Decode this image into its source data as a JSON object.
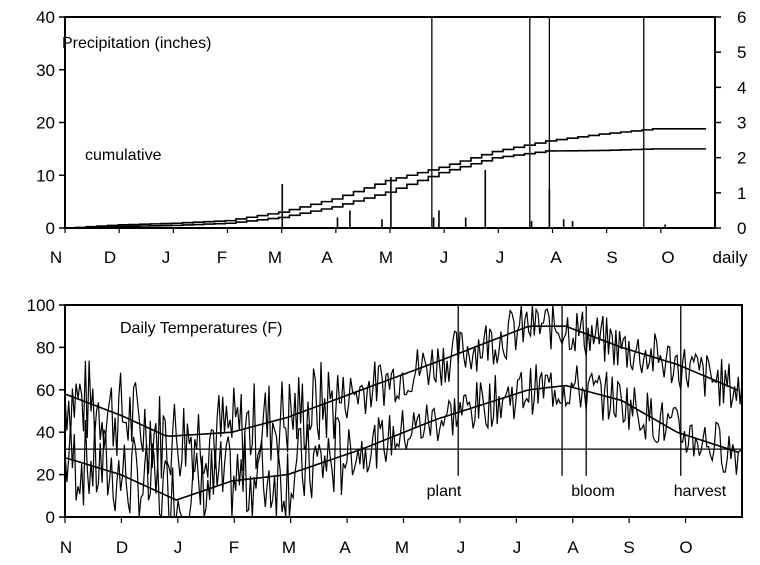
{
  "chart_data": [
    {
      "type": "line",
      "title": "Precipitation (inches)",
      "x_months": [
        "N",
        "D",
        "J",
        "F",
        "M",
        "A",
        "M",
        "J",
        "J",
        "A",
        "S",
        "O",
        "daily"
      ],
      "y_left": {
        "ylim": [
          0,
          40
        ],
        "ticks": [
          "0",
          "10",
          "20",
          "30",
          "40"
        ]
      },
      "y_right": {
        "ylim": [
          0,
          6
        ],
        "ticks": [
          "0",
          "1",
          "2",
          "3",
          "4",
          "5",
          "6"
        ]
      },
      "annotation": "cumulative",
      "series": [
        {
          "values_cumulative_day": [
            0,
            30,
            60,
            90,
            120,
            150,
            180,
            210,
            240,
            270,
            300,
            330,
            360
          ],
          "values_cumulative_in": [
            0,
            0.6,
            0.9,
            1.4,
            3.0,
            5.5,
            9.0,
            11.5,
            14.5,
            16.5,
            17.8,
            18.8,
            18.8
          ]
        },
        {
          "values_cumulative_day": [
            0,
            30,
            60,
            90,
            120,
            150,
            180,
            210,
            240,
            270,
            300,
            330,
            360
          ],
          "values_cumulative_in": [
            0,
            0.3,
            0.5,
            0.9,
            2.0,
            4.0,
            6.8,
            10.5,
            13.3,
            14.6,
            14.7,
            15.0,
            15.0
          ]
        }
      ],
      "daily_spikes": [
        {
          "day": 122,
          "in": 1.25
        },
        {
          "day": 153,
          "in": 0.3
        },
        {
          "day": 160,
          "in": 0.5
        },
        {
          "day": 178,
          "in": 0.25
        },
        {
          "day": 183,
          "in": 1.45
        },
        {
          "day": 207,
          "in": 0.3
        },
        {
          "day": 210,
          "in": 0.5
        },
        {
          "day": 225,
          "in": 0.3
        },
        {
          "day": 236,
          "in": 1.65
        },
        {
          "day": 262,
          "in": 0.2
        },
        {
          "day": 272,
          "in": 1.1
        },
        {
          "day": 280,
          "in": 0.25
        },
        {
          "day": 285,
          "in": 0.2
        },
        {
          "day": 337,
          "in": 0.1
        }
      ],
      "vertical_markers_day": [
        206,
        261,
        272,
        325
      ]
    },
    {
      "type": "line",
      "title": "Daily Temperatures (F)",
      "x_months": [
        "N",
        "D",
        "J",
        "F",
        "M",
        "A",
        "M",
        "J",
        "J",
        "A",
        "S",
        "O"
      ],
      "ylim": [
        0,
        100
      ],
      "y_ticks": [
        "0",
        "20",
        "40",
        "60",
        "80",
        "100"
      ],
      "reference_line_F": 32,
      "max_normal": {
        "day": [
          0,
          30,
          55,
          90,
          120,
          160,
          200,
          250,
          270,
          300,
          330,
          365
        ],
        "F": [
          58,
          48,
          38,
          40,
          47,
          60,
          73,
          90,
          90,
          80,
          72,
          59
        ]
      },
      "min_normal": {
        "day": [
          0,
          30,
          60,
          90,
          120,
          160,
          200,
          250,
          270,
          300,
          330,
          365
        ],
        "F": [
          28,
          20,
          8,
          17,
          20,
          32,
          46,
          60,
          62,
          55,
          40,
          30
        ]
      },
      "markers": [
        {
          "label": "plant",
          "day": 212
        },
        {
          "label": "bloom",
          "day": 268
        },
        {
          "label": "harvest",
          "day": 332
        }
      ],
      "extra_marker_day": 281
    }
  ]
}
